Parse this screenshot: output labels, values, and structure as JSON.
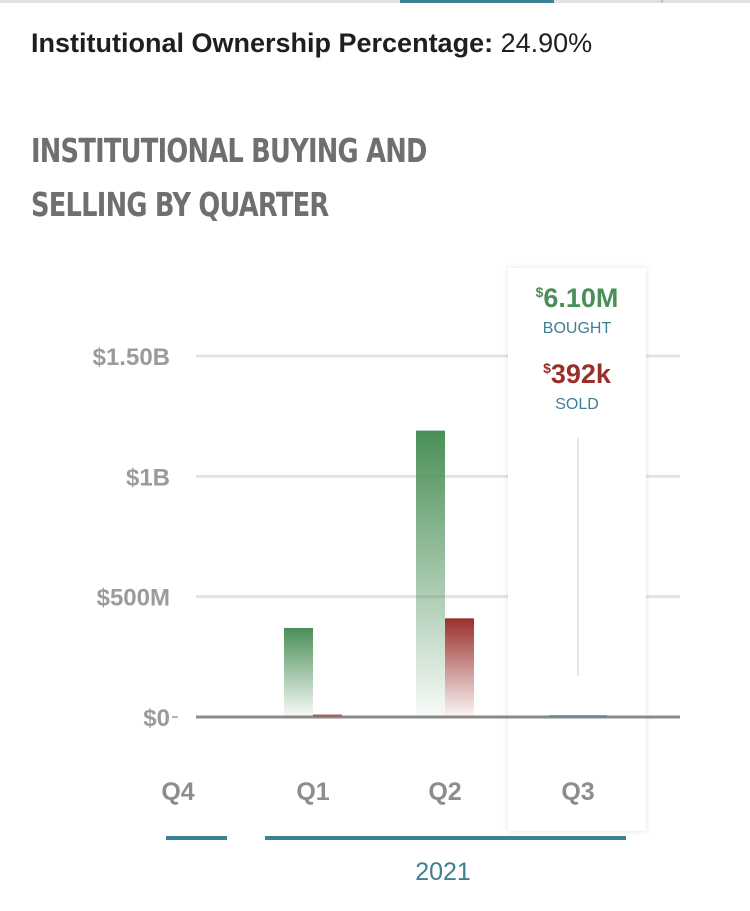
{
  "ownership": {
    "label": "Institutional Ownership Percentage:",
    "value": "24.90%"
  },
  "chart_data": {
    "type": "bar",
    "title": "INSTITUTIONAL BUYING AND SELLING BY QUARTER",
    "categories": [
      "Q4",
      "Q1",
      "Q2",
      "Q3"
    ],
    "year_label": "2021",
    "ylim": [
      0,
      1500000000
    ],
    "yticks": [
      {
        "value": 0,
        "label": "$0"
      },
      {
        "value": 500000000,
        "label": "$500M"
      },
      {
        "value": 1000000000,
        "label": "$1B"
      },
      {
        "value": 1500000000,
        "label": "$1.50B"
      }
    ],
    "series": [
      {
        "name": "Bought",
        "color": "#4a8f57",
        "values": [
          0,
          370000000,
          1190000000,
          6100000
        ]
      },
      {
        "name": "Sold",
        "color": "#9a2f2a",
        "values": [
          0,
          10000000,
          410000000,
          392000
        ]
      }
    ],
    "tooltip": {
      "category": "Q3",
      "currency": "$",
      "bought_value": "6.10M",
      "bought_label": "BOUGHT",
      "sold_value": "392k",
      "sold_label": "SOLD"
    },
    "colors": {
      "bought": "#4a8f57",
      "sold": "#9a2f2a",
      "accent": "#3f7f94",
      "grid": "#e3e3e3",
      "axis": "#8a8a8a"
    }
  }
}
